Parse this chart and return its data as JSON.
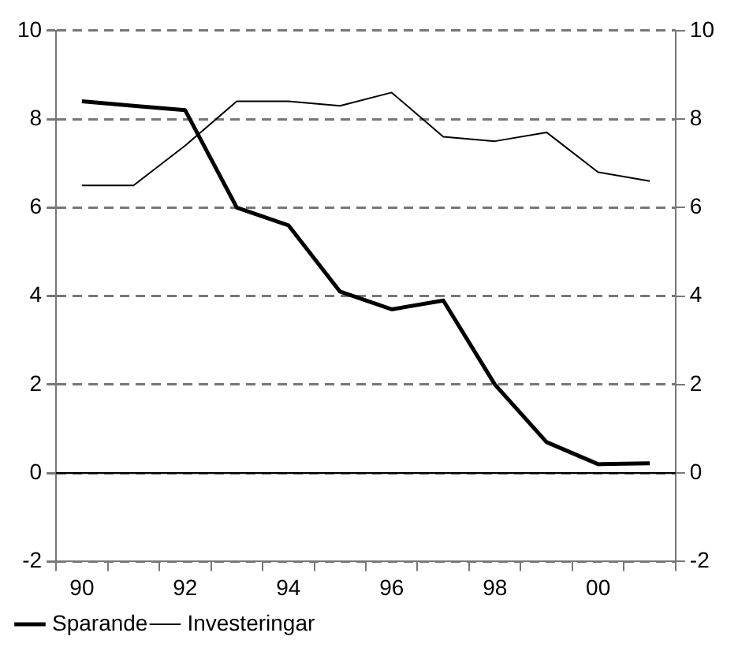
{
  "chart_data": {
    "type": "line",
    "categories": [
      "90",
      null,
      "92",
      null,
      "94",
      null,
      "96",
      null,
      "98",
      null,
      "00",
      null
    ],
    "series": [
      {
        "name": "Sparande",
        "color": "#000000",
        "values": [
          8.4,
          8.3,
          8.2,
          6.0,
          5.6,
          4.1,
          3.7,
          3.9,
          2.0,
          0.7,
          0.2,
          0.22
        ]
      },
      {
        "name": "Investeringar",
        "color": "#000000",
        "values": [
          6.5,
          6.5,
          7.4,
          8.4,
          8.4,
          8.3,
          8.6,
          7.6,
          7.5,
          7.7,
          6.8,
          6.6
        ]
      }
    ],
    "ylim": [
      -2,
      10
    ],
    "yticks": [
      -2,
      0,
      2,
      4,
      6,
      8,
      10
    ],
    "y2lim": [
      -2,
      10
    ],
    "y2ticks": [
      -2,
      0,
      2,
      4,
      6,
      8,
      10
    ],
    "ref_lines": [
      {
        "axis": "y",
        "value": 0,
        "color": "#000000"
      }
    ],
    "grid": "y",
    "legend": "bottom left",
    "marker": "none",
    "line_style": "solid"
  }
}
